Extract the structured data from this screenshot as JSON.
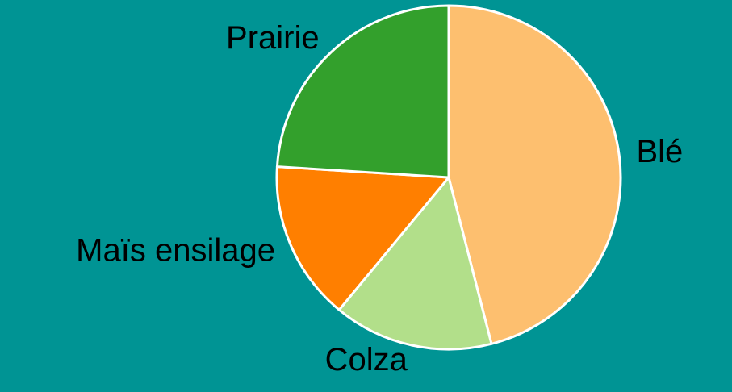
{
  "chart_data": {
    "type": "pie",
    "categories": [
      "Blé",
      "Colza",
      "Maïs ensilage",
      "Prairie"
    ],
    "values": [
      46,
      15,
      15,
      24
    ],
    "colors": [
      "#fdbf6f",
      "#b2df8a",
      "#ff7f00",
      "#33a02c"
    ],
    "start_angle": "top",
    "direction": "clockwise"
  }
}
